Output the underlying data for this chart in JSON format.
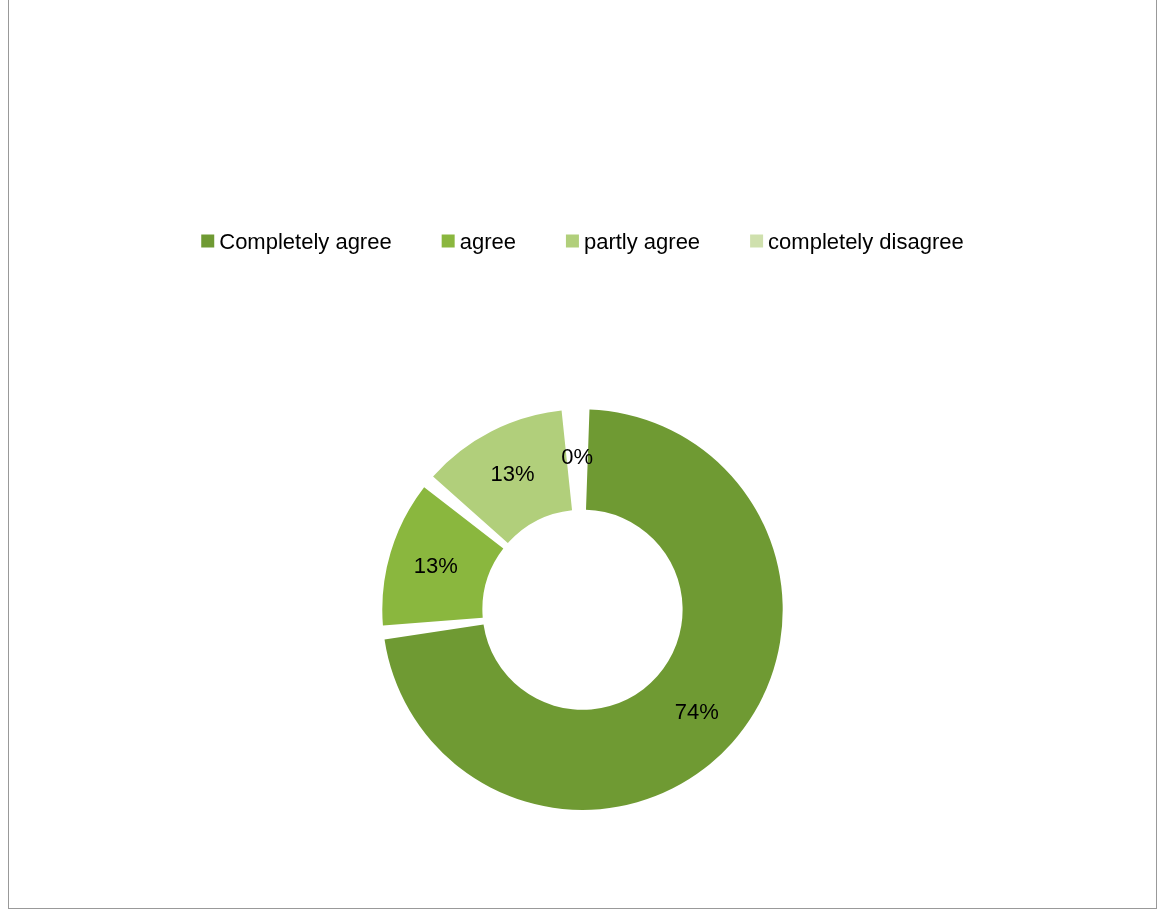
{
  "chart_data": {
    "type": "donut",
    "categories": [
      "Completely agree",
      "agree",
      "partly agree",
      "completely disagree"
    ],
    "values": [
      74,
      13,
      13,
      0
    ],
    "value_labels": [
      "74%",
      "13%",
      "13%",
      "0%"
    ],
    "colors": [
      "#6f9a33",
      "#8ab73e",
      "#b1cf7b",
      "#cfe0ad"
    ],
    "legend": "top"
  }
}
